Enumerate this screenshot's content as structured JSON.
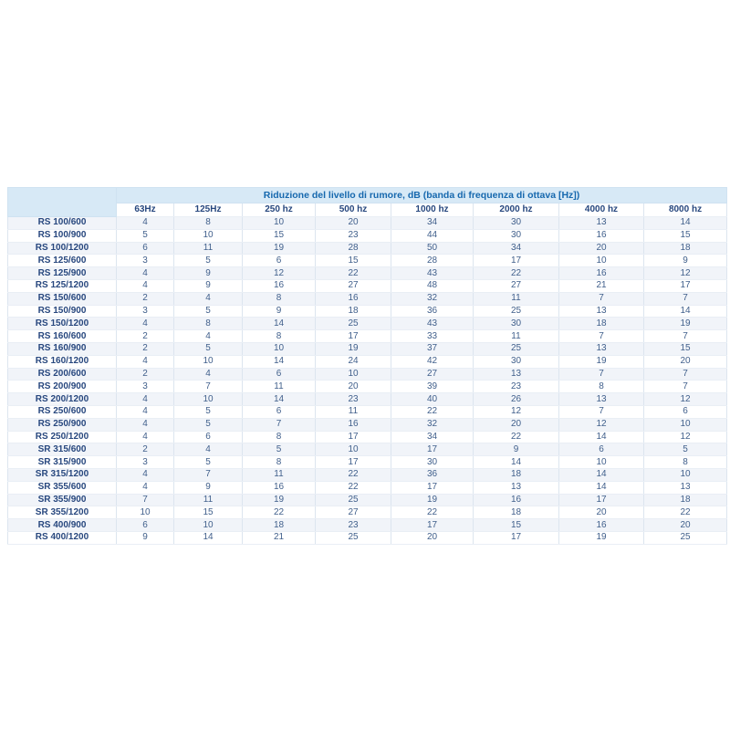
{
  "colors": {
    "band_bg": "#d7e9f6",
    "band_text": "#1668ae",
    "header_text": "#27477e",
    "value_text": "#41608c",
    "stripe_bg": "#f1f4f9",
    "row_bg": "#ffffff",
    "border_vertical": "#dce5ef",
    "border_horizontal": "#e9eef5",
    "page_bg": "#ffffff"
  },
  "chart_data": {
    "type": "table",
    "title": "Riduzione del livello di rumore, dB (banda di frequenza di ottava [Hz])",
    "row_header_label": "",
    "categories": [
      "63Hz",
      "125Hz",
      "250 hz",
      "500 hz",
      "1000 hz",
      "2000 hz",
      "4000 hz",
      "8000 hz"
    ],
    "series": [
      {
        "name": "RS 100/600",
        "values": [
          4,
          8,
          10,
          20,
          34,
          30,
          13,
          14
        ]
      },
      {
        "name": "RS 100/900",
        "values": [
          5,
          10,
          15,
          23,
          44,
          30,
          16,
          15
        ]
      },
      {
        "name": "RS 100/1200",
        "values": [
          6,
          11,
          19,
          28,
          50,
          34,
          20,
          18
        ]
      },
      {
        "name": "RS 125/600",
        "values": [
          3,
          5,
          6,
          15,
          28,
          17,
          10,
          9
        ]
      },
      {
        "name": "RS 125/900",
        "values": [
          4,
          9,
          12,
          22,
          43,
          22,
          16,
          12
        ]
      },
      {
        "name": "RS 125/1200",
        "values": [
          4,
          9,
          16,
          27,
          48,
          27,
          21,
          17
        ]
      },
      {
        "name": "RS 150/600",
        "values": [
          2,
          4,
          8,
          16,
          32,
          11,
          7,
          7
        ]
      },
      {
        "name": "RS 150/900",
        "values": [
          3,
          5,
          9,
          18,
          36,
          25,
          13,
          14
        ]
      },
      {
        "name": "RS 150/1200",
        "values": [
          4,
          8,
          14,
          25,
          43,
          30,
          18,
          19
        ]
      },
      {
        "name": "RS 160/600",
        "values": [
          2,
          4,
          8,
          17,
          33,
          11,
          7,
          7
        ]
      },
      {
        "name": "RS 160/900",
        "values": [
          2,
          5,
          10,
          19,
          37,
          25,
          13,
          15
        ]
      },
      {
        "name": "RS 160/1200",
        "values": [
          4,
          10,
          14,
          24,
          42,
          30,
          19,
          20
        ]
      },
      {
        "name": "RS 200/600",
        "values": [
          2,
          4,
          6,
          10,
          27,
          13,
          7,
          7
        ]
      },
      {
        "name": "RS 200/900",
        "values": [
          3,
          7,
          11,
          20,
          39,
          23,
          8,
          7
        ]
      },
      {
        "name": "RS 200/1200",
        "values": [
          4,
          10,
          14,
          23,
          40,
          26,
          13,
          12
        ]
      },
      {
        "name": "RS 250/600",
        "values": [
          4,
          5,
          6,
          11,
          22,
          12,
          7,
          6
        ]
      },
      {
        "name": "RS 250/900",
        "values": [
          4,
          5,
          7,
          16,
          32,
          20,
          12,
          10
        ]
      },
      {
        "name": "RS 250/1200",
        "values": [
          4,
          6,
          8,
          17,
          34,
          22,
          14,
          12
        ]
      },
      {
        "name": "SR 315/600",
        "values": [
          2,
          4,
          5,
          10,
          17,
          9,
          6,
          5
        ]
      },
      {
        "name": "SR 315/900",
        "values": [
          3,
          5,
          8,
          17,
          30,
          14,
          10,
          8
        ]
      },
      {
        "name": "SR 315/1200",
        "values": [
          4,
          7,
          11,
          22,
          36,
          18,
          14,
          10
        ]
      },
      {
        "name": "SR 355/600",
        "values": [
          4,
          9,
          16,
          22,
          17,
          13,
          14,
          13
        ]
      },
      {
        "name": "SR 355/900",
        "values": [
          7,
          11,
          19,
          25,
          19,
          16,
          17,
          18
        ]
      },
      {
        "name": "SR 355/1200",
        "values": [
          10,
          15,
          22,
          27,
          22,
          18,
          20,
          22
        ]
      },
      {
        "name": "RS 400/900",
        "values": [
          6,
          10,
          18,
          23,
          17,
          15,
          16,
          20
        ]
      },
      {
        "name": "RS 400/1200",
        "values": [
          9,
          14,
          21,
          25,
          20,
          17,
          19,
          25
        ]
      }
    ]
  }
}
